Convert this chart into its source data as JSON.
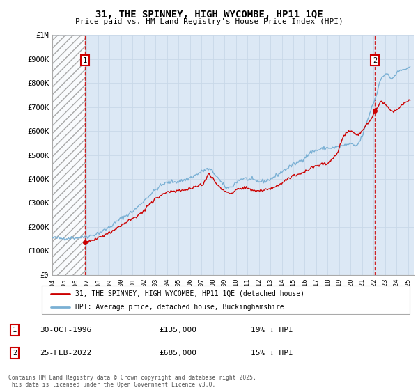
{
  "title": "31, THE SPINNEY, HIGH WYCOMBE, HP11 1QE",
  "subtitle": "Price paid vs. HM Land Registry's House Price Index (HPI)",
  "legend_label_red": "31, THE SPINNEY, HIGH WYCOMBE, HP11 1QE (detached house)",
  "legend_label_blue": "HPI: Average price, detached house, Buckinghamshire",
  "footnote": "Contains HM Land Registry data © Crown copyright and database right 2025.\nThis data is licensed under the Open Government Licence v3.0.",
  "annotation1_date": "30-OCT-1996",
  "annotation1_price": "£135,000",
  "annotation1_hpi": "19% ↓ HPI",
  "annotation2_date": "25-FEB-2022",
  "annotation2_price": "£685,000",
  "annotation2_hpi": "15% ↓ HPI",
  "ylim": [
    0,
    1000000
  ],
  "yticks": [
    0,
    100000,
    200000,
    300000,
    400000,
    500000,
    600000,
    700000,
    800000,
    900000,
    1000000
  ],
  "ytick_labels": [
    "£0",
    "£100K",
    "£200K",
    "£300K",
    "£400K",
    "£500K",
    "£600K",
    "£700K",
    "£800K",
    "£900K",
    "£1M"
  ],
  "xlim_start": 1994.0,
  "xlim_end": 2025.5,
  "xticks": [
    1994,
    1995,
    1996,
    1997,
    1998,
    1999,
    2000,
    2001,
    2002,
    2003,
    2004,
    2005,
    2006,
    2007,
    2008,
    2009,
    2010,
    2011,
    2012,
    2013,
    2014,
    2015,
    2016,
    2017,
    2018,
    2019,
    2020,
    2021,
    2022,
    2023,
    2024,
    2025
  ],
  "hatch_end_year": 1996.83,
  "sale1_x": 1996.83,
  "sale1_y": 135000,
  "sale2_x": 2022.12,
  "sale2_y": 685000,
  "red_color": "#cc0000",
  "blue_color": "#7ab0d4",
  "grid_color": "#c8d8e8",
  "bg_color": "#dce8f5",
  "ann_box_color": "#cc0000"
}
